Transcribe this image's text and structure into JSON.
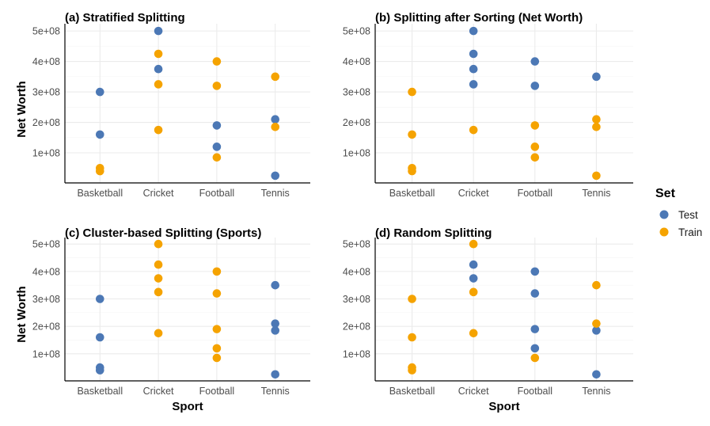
{
  "colors": {
    "Test": "#4C78B5",
    "Train": "#F5A300"
  },
  "y_axis_title": "Net Worth",
  "x_axis_title": "Sport",
  "legend": {
    "title": "Set",
    "items": [
      "Test",
      "Train"
    ]
  },
  "chart_data": [
    {
      "type": "scatter",
      "title": "(a) Stratified Splitting",
      "categories": [
        "Basketball",
        "Cricket",
        "Football",
        "Tennis"
      ],
      "yticks": [
        100000000,
        200000000,
        300000000,
        400000000,
        500000000
      ],
      "ytick_labels": [
        "1e+08",
        "2e+08",
        "3e+08",
        "4e+08",
        "5e+08"
      ],
      "ylim": [
        0,
        500000000
      ],
      "series": [
        {
          "name": "Test",
          "points": [
            [
              "Basketball",
              300000000
            ],
            [
              "Basketball",
              160000000
            ],
            [
              "Cricket",
              500000000
            ],
            [
              "Cricket",
              375000000
            ],
            [
              "Football",
              190000000
            ],
            [
              "Football",
              120000000
            ],
            [
              "Tennis",
              210000000
            ],
            [
              "Tennis",
              25000000
            ]
          ]
        },
        {
          "name": "Train",
          "points": [
            [
              "Basketball",
              50000000
            ],
            [
              "Basketball",
              40000000
            ],
            [
              "Cricket",
              425000000
            ],
            [
              "Cricket",
              325000000
            ],
            [
              "Cricket",
              175000000
            ],
            [
              "Football",
              400000000
            ],
            [
              "Football",
              320000000
            ],
            [
              "Football",
              85000000
            ],
            [
              "Tennis",
              350000000
            ],
            [
              "Tennis",
              185000000
            ]
          ]
        }
      ]
    },
    {
      "type": "scatter",
      "title": "(b) Splitting after Sorting (Net Worth)",
      "categories": [
        "Basketball",
        "Cricket",
        "Football",
        "Tennis"
      ],
      "yticks": [
        100000000,
        200000000,
        300000000,
        400000000,
        500000000
      ],
      "ytick_labels": [
        "1e+08",
        "2e+08",
        "3e+08",
        "4e+08",
        "5e+08"
      ],
      "ylim": [
        0,
        500000000
      ],
      "series": [
        {
          "name": "Test",
          "points": [
            [
              "Cricket",
              500000000
            ],
            [
              "Cricket",
              425000000
            ],
            [
              "Cricket",
              375000000
            ],
            [
              "Cricket",
              325000000
            ],
            [
              "Football",
              400000000
            ],
            [
              "Football",
              320000000
            ],
            [
              "Tennis",
              350000000
            ]
          ]
        },
        {
          "name": "Train",
          "points": [
            [
              "Basketball",
              300000000
            ],
            [
              "Basketball",
              160000000
            ],
            [
              "Basketball",
              50000000
            ],
            [
              "Basketball",
              40000000
            ],
            [
              "Cricket",
              175000000
            ],
            [
              "Football",
              190000000
            ],
            [
              "Football",
              120000000
            ],
            [
              "Football",
              85000000
            ],
            [
              "Tennis",
              210000000
            ],
            [
              "Tennis",
              185000000
            ],
            [
              "Tennis",
              25000000
            ]
          ]
        }
      ]
    },
    {
      "type": "scatter",
      "title": "(c) Cluster-based Splitting (Sports)",
      "categories": [
        "Basketball",
        "Cricket",
        "Football",
        "Tennis"
      ],
      "yticks": [
        100000000,
        200000000,
        300000000,
        400000000,
        500000000
      ],
      "ytick_labels": [
        "1e+08",
        "2e+08",
        "3e+08",
        "4e+08",
        "5e+08"
      ],
      "ylim": [
        0,
        500000000
      ],
      "series": [
        {
          "name": "Test",
          "points": [
            [
              "Basketball",
              300000000
            ],
            [
              "Basketball",
              160000000
            ],
            [
              "Basketball",
              50000000
            ],
            [
              "Basketball",
              40000000
            ],
            [
              "Tennis",
              350000000
            ],
            [
              "Tennis",
              210000000
            ],
            [
              "Tennis",
              185000000
            ],
            [
              "Tennis",
              25000000
            ]
          ]
        },
        {
          "name": "Train",
          "points": [
            [
              "Cricket",
              500000000
            ],
            [
              "Cricket",
              425000000
            ],
            [
              "Cricket",
              375000000
            ],
            [
              "Cricket",
              325000000
            ],
            [
              "Cricket",
              175000000
            ],
            [
              "Football",
              400000000
            ],
            [
              "Football",
              320000000
            ],
            [
              "Football",
              190000000
            ],
            [
              "Football",
              120000000
            ],
            [
              "Football",
              85000000
            ]
          ]
        }
      ]
    },
    {
      "type": "scatter",
      "title": "(d) Random Splitting",
      "categories": [
        "Basketball",
        "Cricket",
        "Football",
        "Tennis"
      ],
      "yticks": [
        100000000,
        200000000,
        300000000,
        400000000,
        500000000
      ],
      "ytick_labels": [
        "1e+08",
        "2e+08",
        "3e+08",
        "4e+08",
        "5e+08"
      ],
      "ylim": [
        0,
        500000000
      ],
      "series": [
        {
          "name": "Test",
          "points": [
            [
              "Cricket",
              425000000
            ],
            [
              "Cricket",
              375000000
            ],
            [
              "Football",
              400000000
            ],
            [
              "Football",
              320000000
            ],
            [
              "Football",
              190000000
            ],
            [
              "Football",
              120000000
            ],
            [
              "Tennis",
              185000000
            ],
            [
              "Tennis",
              25000000
            ]
          ]
        },
        {
          "name": "Train",
          "points": [
            [
              "Basketball",
              300000000
            ],
            [
              "Basketball",
              160000000
            ],
            [
              "Basketball",
              50000000
            ],
            [
              "Basketball",
              40000000
            ],
            [
              "Cricket",
              500000000
            ],
            [
              "Cricket",
              325000000
            ],
            [
              "Cricket",
              175000000
            ],
            [
              "Football",
              85000000
            ],
            [
              "Tennis",
              350000000
            ],
            [
              "Tennis",
              210000000
            ]
          ]
        }
      ]
    }
  ]
}
